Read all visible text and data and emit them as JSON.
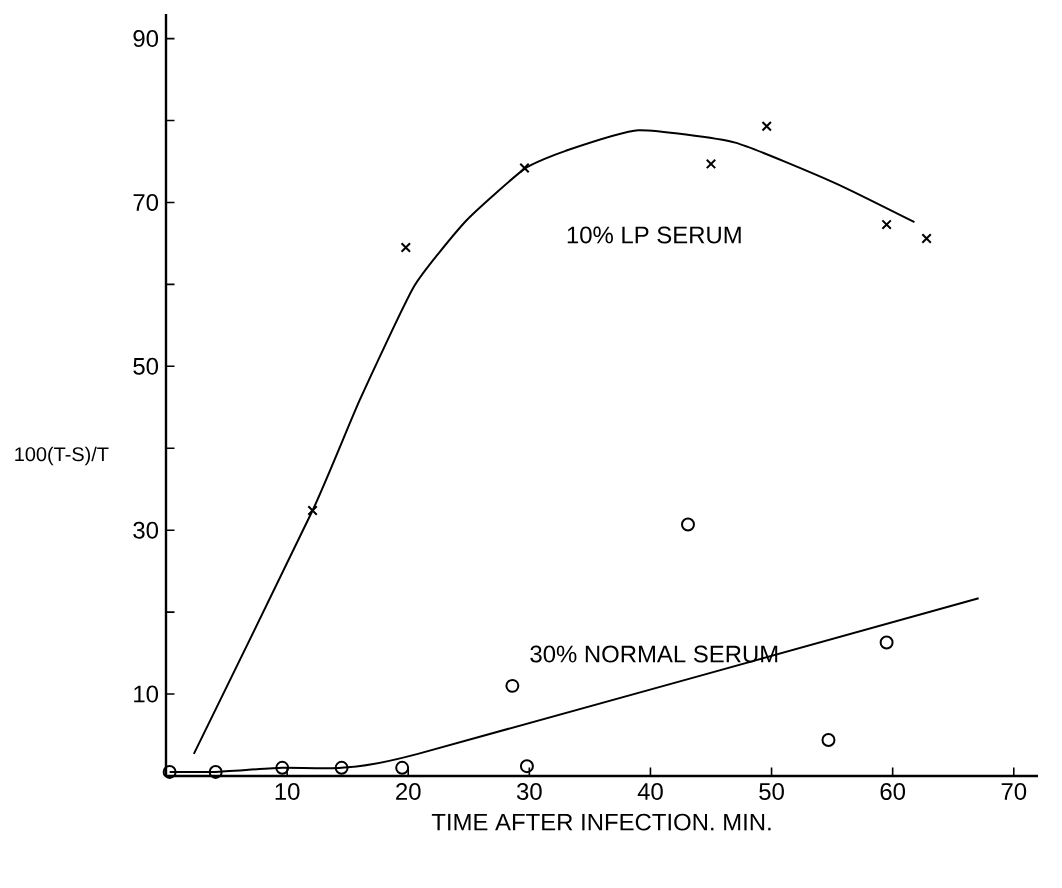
{
  "chart_data": {
    "type": "scatter",
    "xlabel": "TIME AFTER INFECTION. MIN.",
    "ylabel": "100(T-S)/T",
    "xlim": [
      0,
      72
    ],
    "ylim": [
      0,
      93
    ],
    "xticks": [
      10,
      20,
      30,
      40,
      50,
      60,
      70
    ],
    "yticks": [
      10,
      {
        "value": 20,
        "label": null
      },
      30,
      {
        "value": 40,
        "label": null
      },
      50,
      {
        "value": 60,
        "label": null
      },
      70,
      {
        "value": 80,
        "label": null
      },
      90
    ],
    "grid": false,
    "series": [
      {
        "name": "10% LP SERUM",
        "marker": "cross",
        "color": "#000000",
        "x": [
          12.1,
          19.8,
          29.6,
          45,
          49.6,
          59.5,
          62.8
        ],
        "values": [
          32.4,
          64.5,
          74.2,
          74.7,
          79.3,
          67.3,
          65.6
        ]
      },
      {
        "name": "30% NORMAL SERUM",
        "marker": "circle",
        "color": "#000000",
        "x": [
          0.3,
          4.1,
          9.6,
          14.5,
          19.5,
          28.6,
          29.8,
          43.1,
          54.7,
          59.5
        ],
        "values": [
          0.5,
          0.5,
          1,
          1,
          1,
          11,
          1.2,
          30.7,
          4.4,
          16.3
        ]
      },
      {
        "type": "line",
        "marker": "none",
        "line_style": "solid",
        "color": "#000000",
        "x": [
          2.3,
          12.1,
          16,
          20.5,
          24.8,
          29.6,
          33,
          39,
          47,
          55.2,
          61.8
        ],
        "values": [
          2.7,
          32.4,
          45.9,
          59.8,
          67.8,
          74.1,
          76.3,
          78.8,
          77.3,
          72.4,
          67.6
        ]
      },
      {
        "type": "line",
        "marker": "none",
        "line_style": "solid",
        "color": "#000000",
        "x": [
          0.3,
          4.1,
          9.6,
          14.5,
          20.8,
          67.1
        ],
        "values": [
          0.5,
          0.5,
          1,
          1,
          2.7,
          21.7
        ]
      }
    ]
  }
}
